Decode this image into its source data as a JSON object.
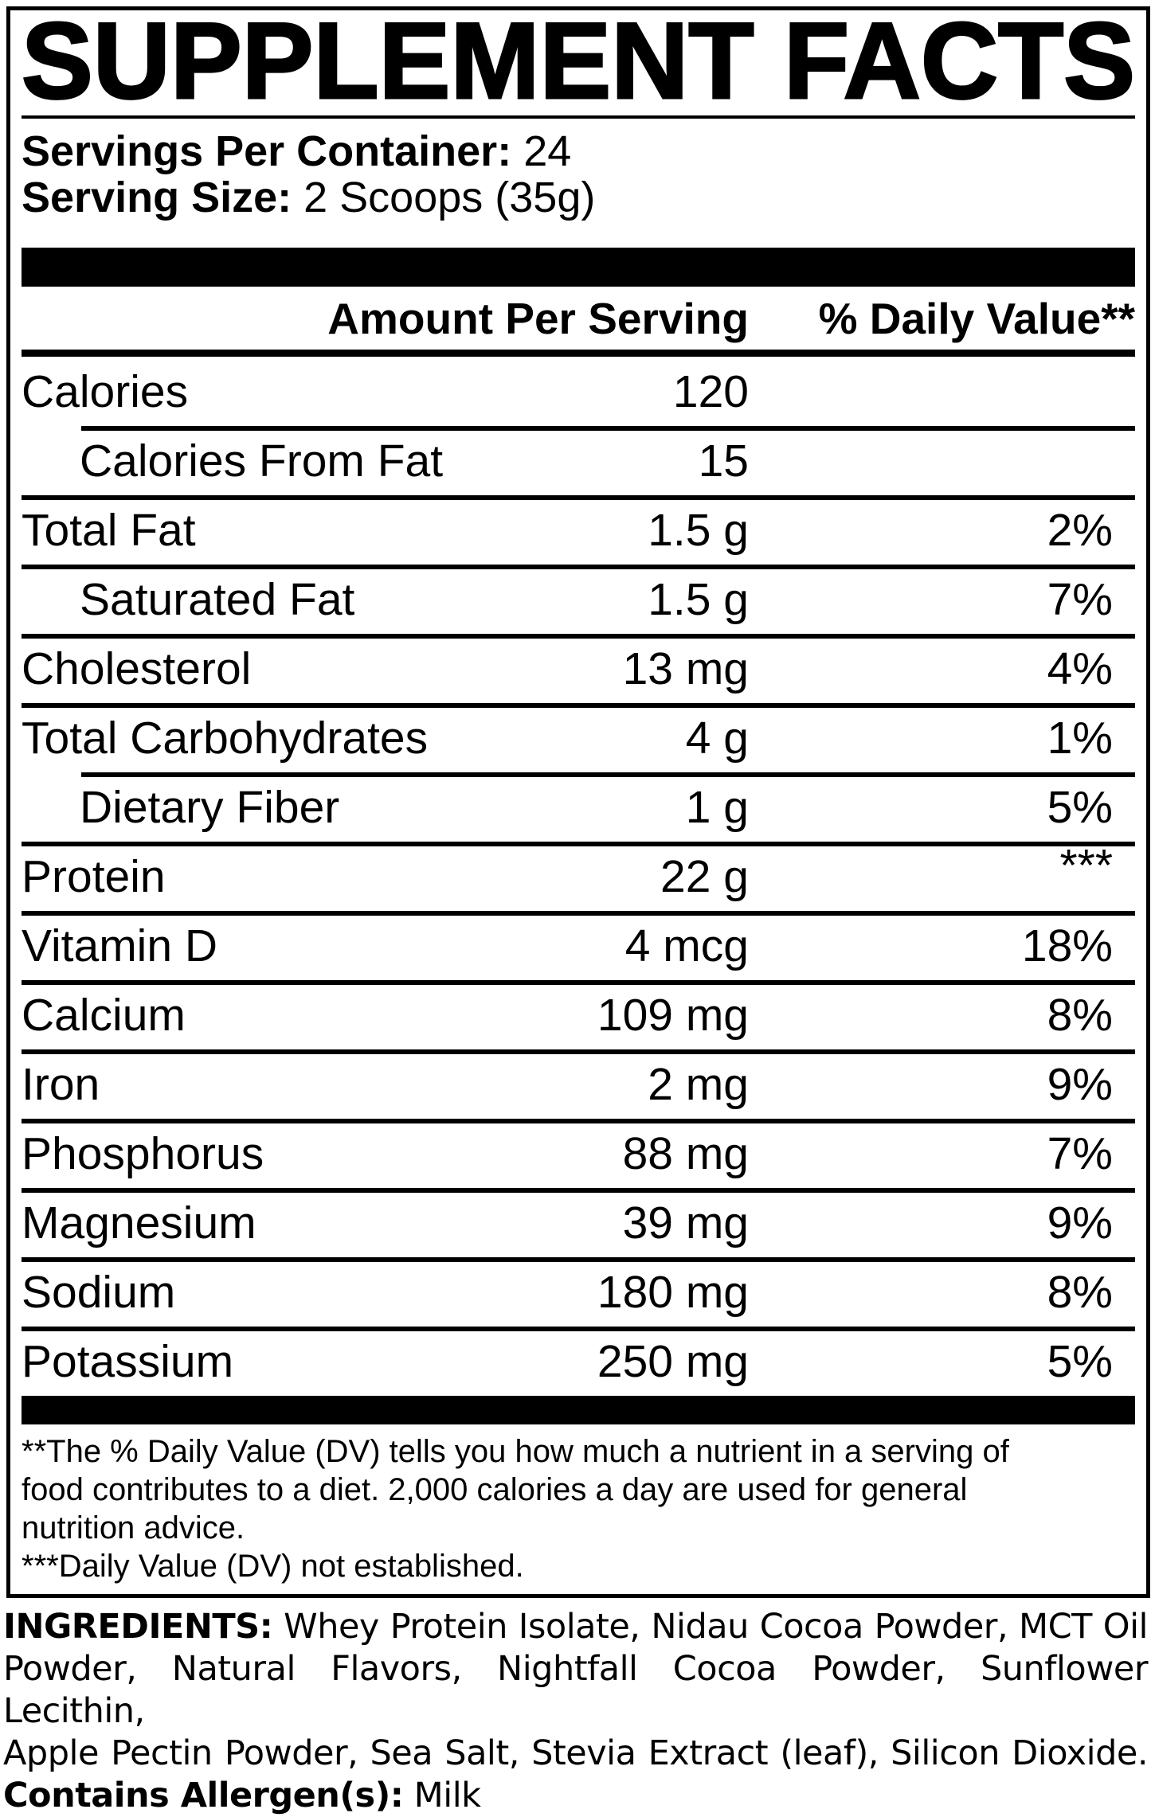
{
  "colors": {
    "ink": "#000000",
    "paper": "#ffffff"
  },
  "title": "SUPPLEMENT FACTS",
  "servings": {
    "label": "Servings Per Container:",
    "value": "24"
  },
  "serving_size": {
    "label": "Serving Size:",
    "value": "2 Scoops (35g)"
  },
  "table": {
    "headers": {
      "amount": "Amount Per Serving",
      "dv": "% Daily Value**"
    },
    "rows": [
      {
        "label": "Calories",
        "amount": "120",
        "dv": ""
      },
      {
        "label": "Calories From Fat",
        "amount": "15",
        "dv": ""
      },
      {
        "label": "Total Fat",
        "amount": "1.5 g",
        "dv": "2%"
      },
      {
        "label": "Saturated Fat",
        "amount": "1.5 g",
        "dv": "7%"
      },
      {
        "label": "Cholesterol",
        "amount": "13 mg",
        "dv": "4%"
      },
      {
        "label": "Total Carbohydrates",
        "amount": "4 g",
        "dv": "1%"
      },
      {
        "label": "Dietary Fiber",
        "amount": "1 g",
        "dv": "5%"
      },
      {
        "label": "Protein",
        "amount": "22 g",
        "dv": "***"
      },
      {
        "label": "Vitamin D",
        "amount": "4 mcg",
        "dv": "18%"
      },
      {
        "label": "Calcium",
        "amount": "109 mg",
        "dv": "8%"
      },
      {
        "label": "Iron",
        "amount": "2 mg",
        "dv": "9%"
      },
      {
        "label": "Phosphorus",
        "amount": "88 mg",
        "dv": "7%"
      },
      {
        "label": "Magnesium",
        "amount": "39 mg",
        "dv": "9%"
      },
      {
        "label": "Sodium",
        "amount": "180 mg",
        "dv": "8%"
      },
      {
        "label": "Potassium",
        "amount": "250 mg",
        "dv": "5%"
      }
    ]
  },
  "footnotes": {
    "lines": [
      "**The % Daily Value (DV) tells you how much a nutrient in a serving of",
      "food contributes to a diet. 2,000 calories a day are used for general",
      "nutrition advice.",
      "***Daily Value (DV) not established."
    ]
  },
  "ingredients": {
    "label": "INGREDIENTS:",
    "lines": [
      " Whey Protein Isolate, Nidau Cocoa Powder, MCT Oil",
      "Powder, Natural Flavors, Nightfall Cocoa Powder, Sunflower Lecithin,",
      "Apple Pectin Powder, Sea Salt, Stevia Extract (leaf), Silicon Dioxide."
    ],
    "allergen_label": "Contains Allergen(s):",
    "allergen_value": " Milk"
  }
}
